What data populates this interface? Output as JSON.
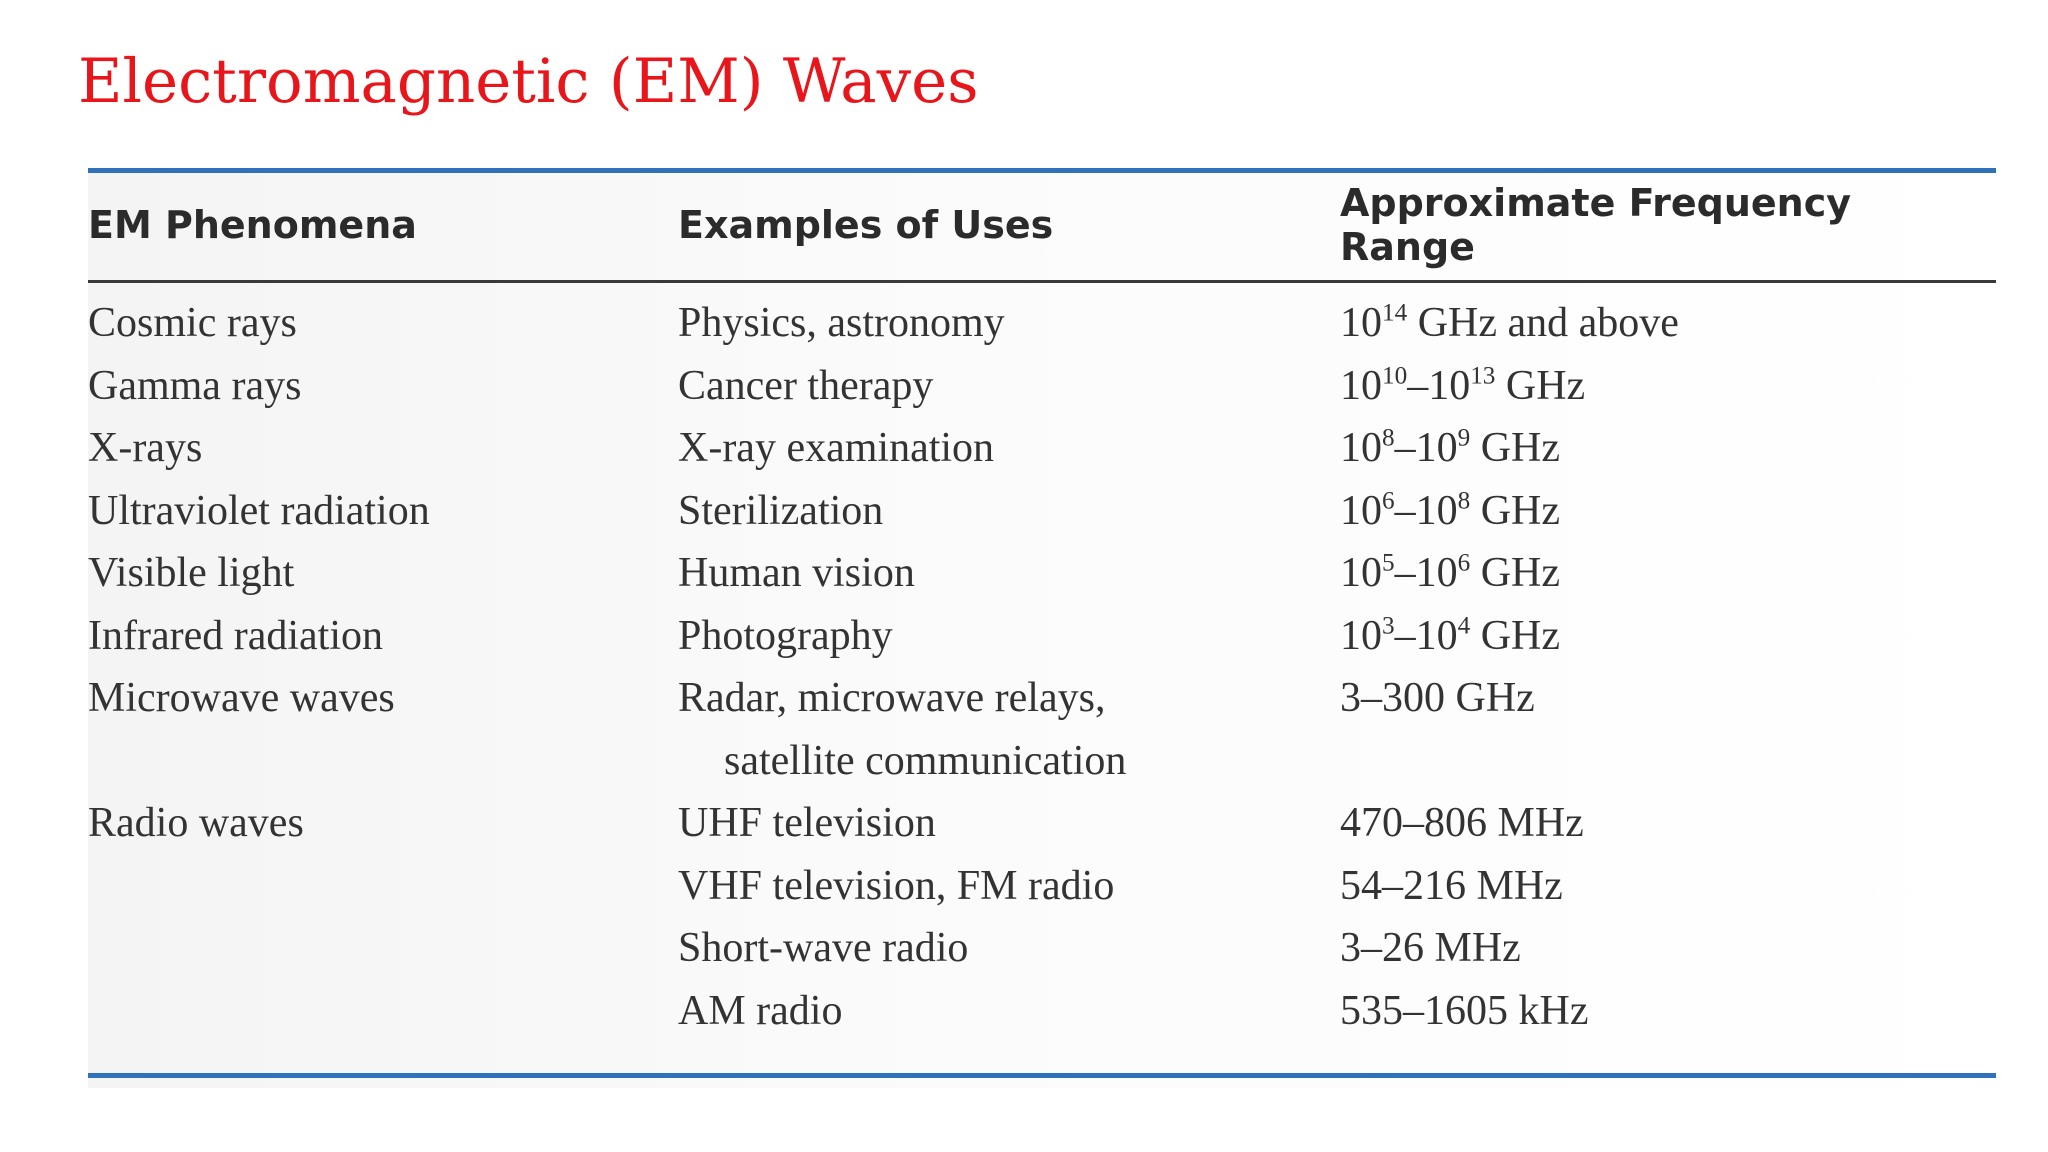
{
  "title": "Electromagnetic (EM) Waves",
  "table": {
    "headers": [
      "EM Phenomena",
      "Examples of Uses",
      "Approximate Frequency Range"
    ],
    "rows": [
      {
        "phenomenon": "Cosmic rays",
        "use": "Physics, astronomy",
        "range": {
          "base1": "10",
          "exp1": "14",
          "sep": "",
          "base2": "",
          "exp2": "",
          "unit": " GHz and above"
        }
      },
      {
        "phenomenon": "Gamma rays",
        "use": "Cancer therapy",
        "range": {
          "base1": "10",
          "exp1": "10",
          "sep": "–",
          "base2": "10",
          "exp2": "13",
          "unit": " GHz"
        }
      },
      {
        "phenomenon": "X-rays",
        "use": "X-ray examination",
        "range": {
          "base1": "10",
          "exp1": "8",
          "sep": "–",
          "base2": "10",
          "exp2": "9",
          "unit": " GHz"
        }
      },
      {
        "phenomenon": "Ultraviolet radiation",
        "use": "Sterilization",
        "range": {
          "base1": "10",
          "exp1": "6",
          "sep": "–",
          "base2": "10",
          "exp2": "8",
          "unit": " GHz"
        }
      },
      {
        "phenomenon": "Visible light",
        "use": "Human vision",
        "range": {
          "base1": "10",
          "exp1": "5",
          "sep": "–",
          "base2": "10",
          "exp2": "6",
          "unit": " GHz"
        }
      },
      {
        "phenomenon": "Infrared radiation",
        "use": "Photography",
        "range": {
          "base1": "10",
          "exp1": "3",
          "sep": "–",
          "base2": "10",
          "exp2": "4",
          "unit": " GHz"
        }
      },
      {
        "phenomenon": "Microwave waves",
        "use": "Radar, microwave relays,",
        "range": {
          "base1": "3–300 GHz",
          "exp1": "",
          "sep": "",
          "base2": "",
          "exp2": "",
          "unit": ""
        }
      },
      {
        "phenomenon": "",
        "use": "satellite communication",
        "range": {
          "base1": "",
          "exp1": "",
          "sep": "",
          "base2": "",
          "exp2": "",
          "unit": ""
        }
      },
      {
        "phenomenon": "Radio waves",
        "use": "UHF television",
        "range": {
          "base1": "470–806 MHz",
          "exp1": "",
          "sep": "",
          "base2": "",
          "exp2": "",
          "unit": ""
        }
      },
      {
        "phenomenon": "",
        "use": "VHF television, FM radio",
        "range": {
          "base1": "54–216 MHz",
          "exp1": "",
          "sep": "",
          "base2": "",
          "exp2": "",
          "unit": ""
        }
      },
      {
        "phenomenon": "",
        "use": "Short-wave radio",
        "range": {
          "base1": "3–26 MHz",
          "exp1": "",
          "sep": "",
          "base2": "",
          "exp2": "",
          "unit": ""
        }
      },
      {
        "phenomenon": "",
        "use": "AM radio",
        "range": {
          "base1": "535–1605 kHz",
          "exp1": "",
          "sep": "",
          "base2": "",
          "exp2": "",
          "unit": ""
        }
      }
    ]
  },
  "colors": {
    "title": "#e8161b",
    "rule_accent": "#2f72b9",
    "header_rule": "#3a3a3a",
    "text": "#333333"
  }
}
